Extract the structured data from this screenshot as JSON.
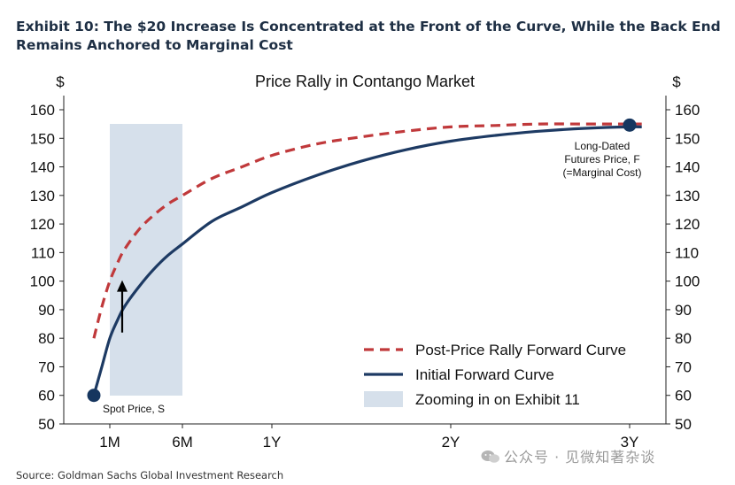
{
  "header": {
    "title_line1": "Exhibit 10: The $20 Increase Is Concentrated at the Front of the Curve, While the Back End",
    "title_line2": "Remains Anchored to Marginal Cost"
  },
  "footer": {
    "source": "Source: Goldman Sachs Global Investment Research",
    "watermark": "公众号 · 见微知著杂谈"
  },
  "colors": {
    "initial_curve": "#1d3a63",
    "rally_curve": "#c0393b",
    "zoom_band": "#d6e0eb",
    "marker": "#16365f"
  },
  "chart_data": {
    "type": "line",
    "title": "Price Rally in Contango Market",
    "ylabel_left": "$",
    "ylabel_right": "$",
    "ylim": [
      50,
      160
    ],
    "yticks": [
      50,
      60,
      70,
      80,
      90,
      100,
      110,
      120,
      130,
      140,
      150,
      160
    ],
    "xlim": [
      0,
      39
    ],
    "xticks": [
      {
        "label": "1M",
        "month": 1
      },
      {
        "label": "6M",
        "month": 6
      },
      {
        "label": "1Y",
        "month": 12
      },
      {
        "label": "2Y",
        "month": 24
      },
      {
        "label": "3Y",
        "month": 36
      }
    ],
    "series": [
      {
        "name": "Post-Price Rally Forward Curve",
        "style": "dashed",
        "x": [
          0,
          0.5,
          1,
          1.5,
          2,
          3,
          4,
          5,
          6,
          8,
          10,
          12,
          15,
          18,
          21,
          24,
          27,
          30,
          33,
          36,
          37
        ],
        "y": [
          80,
          91,
          100,
          106,
          111,
          118,
          123,
          127,
          130,
          136,
          140,
          144,
          148,
          150.5,
          152.5,
          154,
          154.5,
          155,
          155,
          155,
          155
        ]
      },
      {
        "name": "Initial Forward Curve",
        "style": "solid",
        "x": [
          0,
          0.5,
          1,
          1.5,
          2,
          3,
          4,
          5,
          6,
          8,
          10,
          12,
          15,
          18,
          21,
          24,
          27,
          30,
          33,
          36,
          37
        ],
        "y": [
          60,
          70,
          80,
          86,
          91,
          98,
          104,
          109,
          113,
          121,
          126,
          131,
          137,
          142,
          146,
          149,
          151,
          152.5,
          153.5,
          154,
          154
        ]
      }
    ],
    "shaded_region": {
      "name": "Zooming in on Exhibit 11",
      "x_start": 1,
      "x_end": 6
    },
    "markers": [
      {
        "label": "Spot Price, S",
        "x": 0,
        "y": 60
      },
      {
        "label_lines": [
          "Long-Dated",
          "Futures Price, F",
          "(=Marginal Cost)"
        ],
        "x": 36,
        "y": 154
      }
    ],
    "arrow": {
      "x": 1,
      "from": 82,
      "to": 100
    },
    "legend": {
      "placement": "bottom-right",
      "entries": [
        "Post-Price Rally Forward Curve",
        "Initial Forward Curve",
        "Zooming in on Exhibit 11"
      ]
    }
  }
}
